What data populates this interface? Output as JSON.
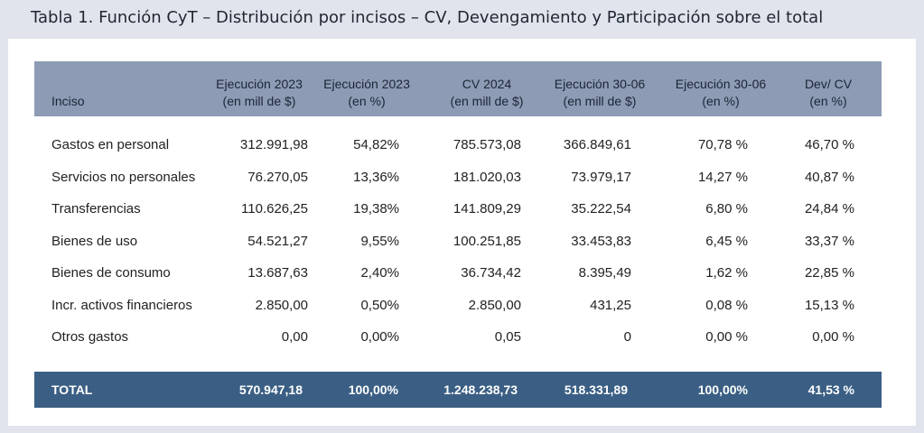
{
  "title": "Tabla 1. Función CyT – Distribución por incisos – CV, Devengamiento y Participación sobre el total",
  "colors": {
    "header_bg": "#8d9bb4",
    "total_bg": "#3b5f84",
    "frame_bg": "#e1e4ec"
  },
  "table": {
    "headers": [
      "Inciso",
      "Ejecución 2023\n(en mill de $)",
      "Ejecución 2023\n(en %)",
      "CV 2024\n(en mill de $)",
      "Ejecución 30-06\n(en mill de $)",
      "Ejecución 30-06\n(en %)",
      "Dev/ CV\n(en %)"
    ],
    "rows": [
      [
        "Gastos en personal",
        "312.991,98",
        "54,82%",
        "785.573,08",
        "366.849,61",
        "70,78 %",
        "46,70 %"
      ],
      [
        "Servicios no personales",
        "76.270,05",
        "13,36%",
        "181.020,03",
        "73.979,17",
        "14,27 %",
        "40,87 %"
      ],
      [
        "Transferencias",
        "110.626,25",
        "19,38%",
        "141.809,29",
        "35.222,54",
        "6,80 %",
        "24,84 %"
      ],
      [
        "Bienes de uso",
        "54.521,27",
        "9,55%",
        "100.251,85",
        "33.453,83",
        "6,45 %",
        "33,37 %"
      ],
      [
        "Bienes de consumo",
        "13.687,63",
        "2,40%",
        "36.734,42",
        "8.395,49",
        "1,62 %",
        "22,85 %"
      ],
      [
        "Incr. activos financieros",
        "2.850,00",
        "0,50%",
        "2.850,00",
        "431,25",
        "0,08 %",
        "15,13 %"
      ],
      [
        "Otros gastos",
        "0,00",
        "0,00%",
        "0,05",
        "0",
        "0,00 %",
        "0,00 %"
      ]
    ],
    "total": [
      "TOTAL",
      "570.947,18",
      "100,00%",
      "1.248.238,73",
      "518.331,89",
      "100,00%",
      "41,53 %"
    ]
  }
}
